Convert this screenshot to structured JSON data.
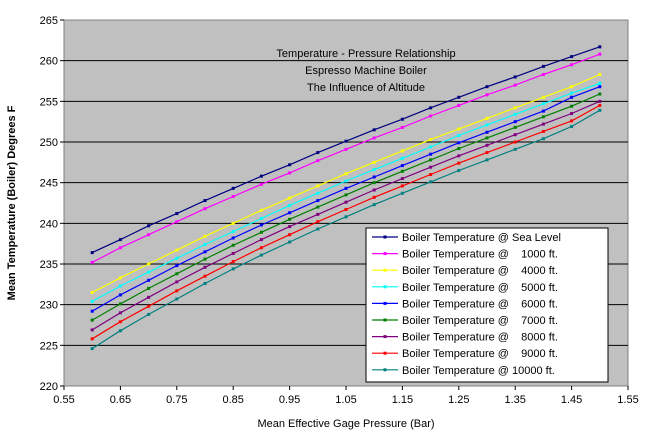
{
  "chart_data": {
    "type": "line",
    "title_lines": [
      "Temperature - Pressure Relationship",
      "Espresso Machine Boiler",
      "The Influence of Altitude"
    ],
    "xlabel": "Mean Effective Gage Pressure (Bar)",
    "ylabel": "Mean Temperature  (Boiler) Degrees F",
    "xlim": [
      0.55,
      1.55
    ],
    "ylim": [
      220,
      265
    ],
    "x_ticks": [
      "0.55",
      "0.65",
      "0.75",
      "0.85",
      "0.95",
      "1.05",
      "1.15",
      "1.25",
      "1.35",
      "1.45",
      "1.55"
    ],
    "y_ticks": [
      "220",
      "225",
      "230",
      "235",
      "240",
      "245",
      "250",
      "255",
      "260",
      "265"
    ],
    "grid": "horizontal",
    "legend_position": "bottom-right",
    "plot_background": "#c0c0c0",
    "x": [
      0.6,
      0.65,
      0.7,
      0.75,
      0.8,
      0.85,
      0.9,
      0.95,
      1.0,
      1.05,
      1.1,
      1.15,
      1.2,
      1.25,
      1.3,
      1.35,
      1.4,
      1.45,
      1.5
    ],
    "series": [
      {
        "name": "Boiler Temperature @ Sea Level",
        "color": "#000080",
        "values": [
          236.4,
          238.0,
          239.7,
          241.2,
          242.8,
          244.3,
          245.8,
          247.2,
          248.7,
          250.1,
          251.5,
          252.8,
          254.2,
          255.5,
          256.8,
          258.0,
          259.3,
          260.5,
          261.7
        ]
      },
      {
        "name": "Boiler Temperature @    1000 ft.",
        "color": "#ff00ff",
        "values": [
          235.2,
          237.0,
          238.6,
          240.2,
          241.8,
          243.3,
          244.8,
          246.2,
          247.7,
          249.1,
          250.5,
          251.8,
          253.2,
          254.5,
          255.8,
          257.0,
          258.3,
          259.5,
          260.8
        ]
      },
      {
        "name": "Boiler Temperature @    4000 ft.",
        "color": "#ffff00",
        "values": [
          231.5,
          233.3,
          235.0,
          236.7,
          238.4,
          240.0,
          241.6,
          243.1,
          244.6,
          246.1,
          247.5,
          248.9,
          250.3,
          251.6,
          252.9,
          254.2,
          255.5,
          256.8,
          258.3
        ]
      },
      {
        "name": "Boiler Temperature @    5000 ft.",
        "color": "#00ffff",
        "values": [
          230.4,
          232.3,
          234.0,
          235.7,
          237.4,
          239.0,
          240.6,
          242.2,
          243.7,
          245.2,
          246.6,
          248.0,
          249.4,
          250.8,
          252.1,
          253.4,
          254.7,
          256.0,
          257.2
        ]
      },
      {
        "name": "Boiler Temperature @    6000 ft.",
        "color": "#0000ff",
        "values": [
          229.2,
          231.2,
          233.0,
          234.8,
          236.5,
          238.2,
          239.8,
          241.3,
          242.8,
          244.3,
          245.7,
          247.1,
          248.5,
          249.9,
          251.2,
          252.5,
          253.8,
          255.5,
          256.8
        ]
      },
      {
        "name": "Boiler Temperature @    7000 ft.",
        "color": "#008000",
        "values": [
          228.1,
          230.1,
          232.0,
          233.8,
          235.6,
          237.3,
          238.9,
          240.5,
          242.0,
          243.5,
          245.0,
          246.4,
          247.8,
          249.2,
          250.5,
          251.8,
          253.1,
          254.4,
          255.9
        ]
      },
      {
        "name": "Boiler Temperature @    8000 ft.",
        "color": "#800080",
        "values": [
          226.9,
          229.0,
          230.9,
          232.8,
          234.6,
          236.3,
          238.0,
          239.6,
          241.1,
          242.6,
          244.1,
          245.5,
          246.9,
          248.3,
          249.6,
          250.9,
          252.2,
          253.5,
          255.0
        ]
      },
      {
        "name": "Boiler Temperature @    9000 ft.",
        "color": "#ff0000",
        "values": [
          225.8,
          227.9,
          229.8,
          231.7,
          233.5,
          235.3,
          237.0,
          238.6,
          240.2,
          241.7,
          243.2,
          244.6,
          246.0,
          247.4,
          248.7,
          250.0,
          251.3,
          252.6,
          254.5
        ]
      },
      {
        "name": "Boiler Temperature @ 10000 ft.",
        "color": "#008080",
        "values": [
          224.6,
          226.8,
          228.8,
          230.7,
          232.6,
          234.4,
          236.1,
          237.7,
          239.3,
          240.8,
          242.3,
          243.7,
          245.1,
          246.5,
          247.8,
          249.1,
          250.4,
          251.9,
          253.9
        ]
      }
    ]
  }
}
